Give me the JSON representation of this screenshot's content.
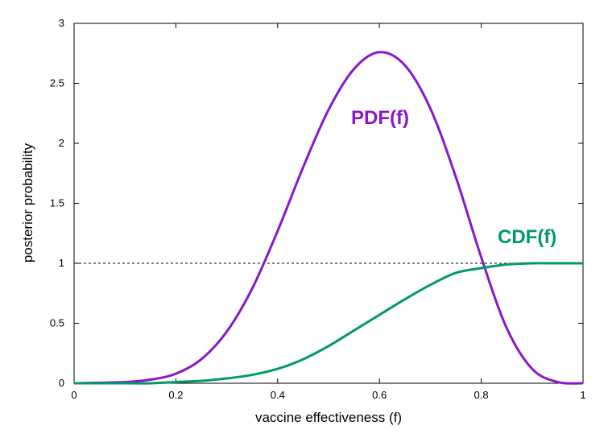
{
  "chart_data": {
    "type": "line",
    "xlabel": "vaccine effectiveness (f)",
    "ylabel": "posterior probability",
    "xlim": [
      0,
      1
    ],
    "ylim": [
      0,
      3
    ],
    "x_ticks": [
      "0",
      "0.2",
      "0.4",
      "0.6",
      "0.8",
      "1"
    ],
    "y_ticks": [
      "0",
      "0.5",
      "1",
      "1.5",
      "2",
      "2.5",
      "3"
    ],
    "reference_line": {
      "y": 1,
      "style": "dashed"
    },
    "grid": false,
    "x": [
      0,
      0.1,
      0.15,
      0.2,
      0.25,
      0.3,
      0.35,
      0.4,
      0.45,
      0.5,
      0.55,
      0.6,
      0.65,
      0.7,
      0.75,
      0.8,
      0.85,
      0.9,
      0.95,
      1
    ],
    "series": [
      {
        "name": "PDF(f)",
        "color": "#8a17c9",
        "values": [
          0,
          0.01,
          0.03,
          0.08,
          0.2,
          0.43,
          0.79,
          1.27,
          1.8,
          2.28,
          2.62,
          2.76,
          2.65,
          2.29,
          1.72,
          1.05,
          0.46,
          0.12,
          0.01,
          0
        ]
      },
      {
        "name": "CDF(f)",
        "color": "#00996e",
        "values": [
          0,
          0,
          0,
          0.01,
          0.02,
          0.04,
          0.07,
          0.12,
          0.2,
          0.31,
          0.44,
          0.57,
          0.7,
          0.82,
          0.92,
          0.96,
          0.99,
          1,
          1,
          1
        ]
      }
    ]
  }
}
